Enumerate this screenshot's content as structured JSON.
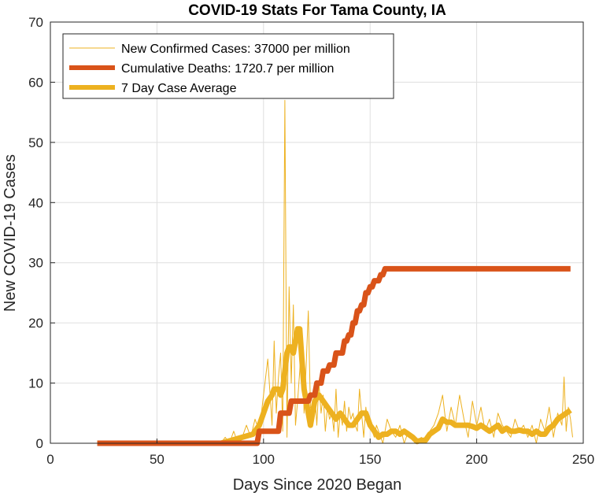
{
  "chart_data": {
    "type": "line",
    "title": "COVID-19 Stats For Tama County, IA",
    "xlabel": "Days Since 2020 Began",
    "ylabel": "New COVID-19 Cases",
    "xlim": [
      0,
      250
    ],
    "ylim": [
      0,
      70
    ],
    "xticks": [
      0,
      50,
      100,
      150,
      200,
      250
    ],
    "yticks": [
      0,
      10,
      20,
      30,
      40,
      50,
      60,
      70
    ],
    "grid": true,
    "legend_position": "top-left",
    "series": [
      {
        "name": "New Confirmed Cases: 37000 per million",
        "color": "#EDB120",
        "width": "thin",
        "x": [
          22,
          30,
          40,
          50,
          60,
          70,
          80,
          82,
          84,
          86,
          88,
          90,
          92,
          94,
          96,
          98,
          100,
          102,
          104,
          105,
          106,
          107,
          108,
          109,
          110,
          111,
          112,
          113,
          114,
          115,
          116,
          117,
          118,
          119,
          120,
          121,
          122,
          123,
          124,
          125,
          126,
          127,
          128,
          129,
          130,
          131,
          132,
          133,
          134,
          135,
          136,
          137,
          138,
          139,
          140,
          141,
          142,
          143,
          144,
          145,
          146,
          147,
          148,
          149,
          150,
          151,
          152,
          153,
          154,
          155,
          156,
          158,
          160,
          162,
          164,
          166,
          168,
          170,
          172,
          174,
          176,
          178,
          180,
          182,
          184,
          186,
          188,
          190,
          192,
          194,
          196,
          198,
          200,
          202,
          204,
          206,
          208,
          210,
          212,
          214,
          216,
          218,
          220,
          222,
          224,
          226,
          228,
          230,
          232,
          234,
          236,
          238,
          240,
          241,
          242,
          243,
          244,
          245
        ],
        "values": [
          0,
          0,
          0,
          0,
          0,
          0,
          0,
          1,
          0,
          2,
          0,
          1,
          3,
          1,
          4,
          2,
          8,
          14,
          3,
          17,
          5,
          11,
          15,
          2,
          57,
          1,
          26,
          10,
          23,
          3,
          7,
          12,
          19,
          5,
          13,
          22,
          6,
          4,
          9,
          3,
          10,
          5,
          8,
          2,
          6,
          4,
          5,
          2,
          9,
          1,
          5,
          3,
          7,
          2,
          6,
          4,
          5,
          3,
          2,
          9,
          5,
          1,
          6,
          3,
          4,
          2,
          1,
          3,
          2,
          1,
          0,
          4,
          2,
          1,
          3,
          0,
          2,
          1,
          0,
          1,
          0,
          2,
          3,
          5,
          8,
          2,
          6,
          3,
          8,
          4,
          1,
          7,
          3,
          6,
          2,
          4,
          1,
          5,
          3,
          2,
          1,
          4,
          2,
          3,
          1,
          3,
          0,
          4,
          2,
          6,
          1,
          5,
          3,
          11,
          2,
          6,
          4,
          1
        ]
      },
      {
        "name": "Cumulative Deaths: 1720.7 per million",
        "color": "#D95319",
        "width": "thick",
        "x": [
          22,
          97,
          98,
          107,
          108,
          112,
          113,
          121,
          122,
          124,
          125,
          127,
          128,
          130,
          131,
          133,
          134,
          137,
          138,
          139,
          140,
          141,
          142,
          143,
          144,
          145,
          146,
          147,
          148,
          149,
          150,
          151,
          152,
          153,
          154,
          155,
          156,
          157,
          158,
          244
        ],
        "values": [
          0,
          0,
          2,
          2,
          5,
          5,
          7,
          7,
          8,
          8,
          10,
          10,
          12,
          12,
          13,
          13,
          15,
          15,
          17,
          17,
          18,
          18,
          20,
          20,
          22,
          22,
          23,
          23,
          25,
          25,
          26,
          26,
          27,
          27,
          27,
          28,
          28,
          29,
          29,
          29
        ]
      },
      {
        "name": "7 Day Case Average",
        "color": "#EDB120",
        "width": "thick",
        "x": [
          22,
          40,
          60,
          80,
          85,
          90,
          95,
          98,
          100,
          102,
          104,
          105,
          106,
          107,
          108,
          109,
          110,
          111,
          112,
          113,
          114,
          115,
          116,
          117,
          118,
          119,
          120,
          121,
          122,
          123,
          124,
          126,
          128,
          130,
          132,
          134,
          136,
          138,
          140,
          142,
          144,
          146,
          148,
          150,
          152,
          154,
          156,
          158,
          160,
          162,
          164,
          166,
          168,
          170,
          172,
          174,
          176,
          178,
          180,
          182,
          184,
          186,
          188,
          190,
          192,
          194,
          196,
          198,
          200,
          202,
          204,
          206,
          208,
          210,
          212,
          214,
          216,
          218,
          220,
          222,
          224,
          226,
          228,
          230,
          232,
          234,
          236,
          238,
          240,
          242,
          244
        ],
        "values": [
          0,
          0,
          0,
          0,
          0.5,
          1,
          1.5,
          3,
          5,
          7,
          8,
          9,
          9,
          9,
          8,
          9,
          12,
          15,
          16,
          16,
          15,
          17,
          19,
          19,
          14,
          9,
          7,
          5,
          3,
          5,
          7,
          8,
          7,
          6,
          5,
          4,
          5,
          4,
          3,
          3,
          4,
          5,
          5,
          3,
          2,
          1,
          1.5,
          1.5,
          2,
          2,
          1.5,
          2,
          1.5,
          1,
          0.3,
          0.5,
          0.5,
          1.5,
          2,
          2.5,
          4,
          3.5,
          3.5,
          3,
          3,
          3,
          3,
          2.8,
          2.5,
          3,
          2.5,
          2,
          2.5,
          3,
          2,
          2.5,
          2,
          2,
          2.2,
          2,
          2,
          1.5,
          2,
          1.5,
          1.5,
          2.5,
          3,
          4,
          4.5,
          5,
          5.5
        ]
      }
    ]
  }
}
